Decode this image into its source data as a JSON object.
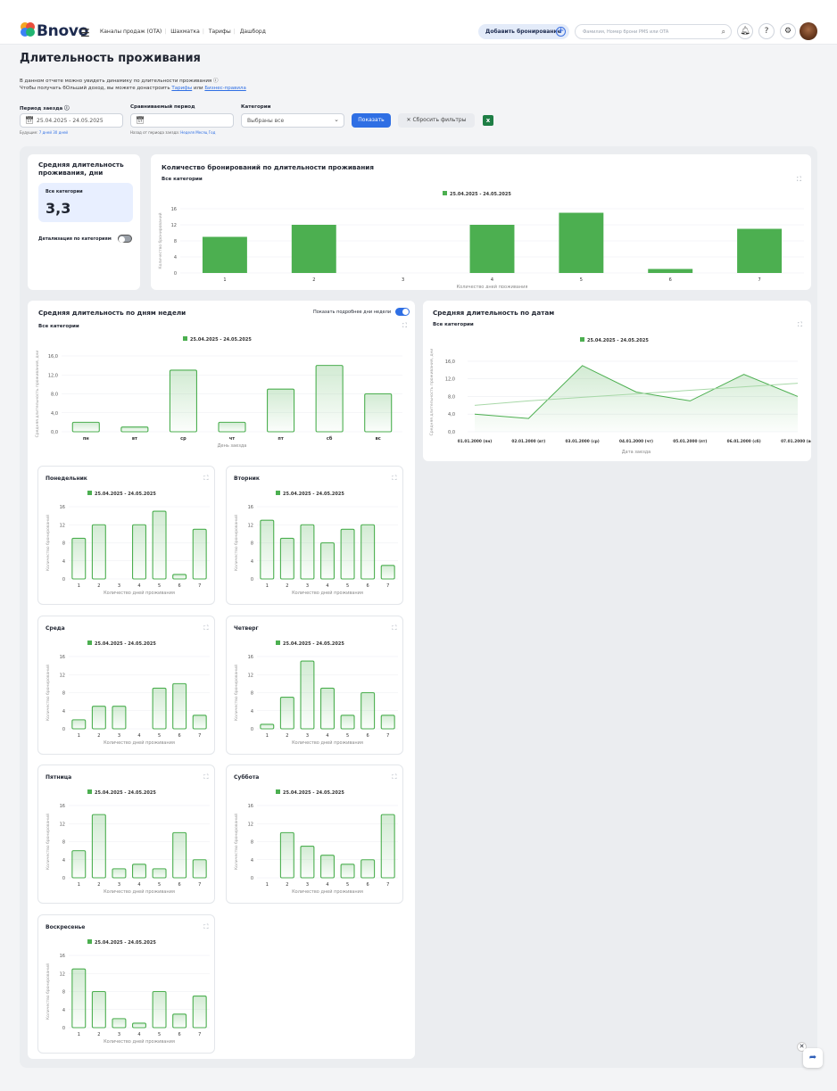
{
  "app": {
    "brand": "Bnovo",
    "nav": [
      "Каналы продаж (OTA)",
      "Шахматка",
      "Тарифы",
      "Дашборд"
    ],
    "add_booking": "Добавить бронирование",
    "search_placeholder": "Фамилия, Номер брони PMS или OTA"
  },
  "page": {
    "title": "Длительность проживания",
    "desc_line1": "В данном отчете можно увидеть динамику по длительности проживания",
    "desc_line2_prefix": "Чтобы получать бОльший доход, вы можете донастроить",
    "desc_link1": "Тарифы",
    "desc_or": "или",
    "desc_link2": "Бизнес-правила"
  },
  "filters": {
    "period_label": "Период заезда",
    "period_value": "25.04.2025 - 24.05.2025",
    "future_label": "Будущие:",
    "future_links": "7 дней 30 дней",
    "compare_label": "Сравниваемый период",
    "compare_hint": "Назад от периода заезда:",
    "compare_links": "Неделя Месяц Год",
    "category_label": "Категории",
    "category_value": "Выбраны все",
    "show_button": "Показать",
    "reset_button": "Сбросить фильтры"
  },
  "avg_card": {
    "title_line1": "Средняя длительность",
    "title_line2": "проживания, дни",
    "box_label": "Все категории",
    "value": "3,3",
    "toggle_label": "Детализация по категориям"
  },
  "weekday_card": {
    "title": "Средняя длительность по дням недели",
    "toggle_label": "Показать подробнее дни недели",
    "subtitle": "Все категории"
  },
  "dates_card": {
    "title": "Средняя длительность по датам",
    "subtitle": "Все категории"
  },
  "icons": {
    "expand": "expand-icon",
    "bell": "bell-icon",
    "help": "help-icon",
    "settings": "gear-icon"
  },
  "colors": {
    "primary": "#2f6fe4",
    "series": "#4caf50",
    "toggle_on": "#2f6fe4",
    "toggle_off": "#9aa0a8"
  },
  "chart_data": [
    {
      "id": "main",
      "type": "bar",
      "title": "Количество бронирований по длительности проживания",
      "subtitle": "Все категории",
      "legend": "25.04.2025 - 24.05.2025",
      "xlabel": "Количество дней проживания",
      "ylabel": "Количество бронирований",
      "categories": [
        "1",
        "2",
        "3",
        "4",
        "5",
        "6",
        "7"
      ],
      "values": [
        9,
        12,
        0,
        12,
        15,
        1,
        11
      ],
      "ylim": [
        0,
        16
      ],
      "yticks": [
        "0",
        "4",
        "8",
        "12",
        "16"
      ]
    },
    {
      "id": "weekday",
      "type": "bar",
      "legend": "25.04.2025 - 24.05.2025",
      "xlabel": "День заезда",
      "ylabel": "Средняя длительность проживания, дни",
      "categories": [
        "пн",
        "вт",
        "ср",
        "чт",
        "пт",
        "сб",
        "вс"
      ],
      "values": [
        2.0,
        1.0,
        13.0,
        2.0,
        9.0,
        14.0,
        8.0
      ],
      "ylim": [
        0,
        16
      ],
      "yticks": [
        "0,0",
        "4,0",
        "8,0",
        "12,0",
        "16,0"
      ]
    },
    {
      "id": "dates",
      "type": "line",
      "legend": "25.04.2025 - 24.05.2025",
      "xlabel": "Дата заезда",
      "ylabel": "Средняя длительность проживания, дни",
      "categories": [
        "01.01.2000 (пн)",
        "02.01.2000 (вт)",
        "03.01.2000 (ср)",
        "04.01.2000 (чт)",
        "05.01.2000 (пт)",
        "06.01.2000 (сб)",
        "07.01.2000 (вс)"
      ],
      "values": [
        4,
        3,
        15,
        9,
        7,
        13,
        8
      ],
      "trend": [
        6,
        7,
        7.8,
        8.6,
        9.4,
        10.2,
        11
      ],
      "ylim": [
        0,
        18
      ],
      "yticks": [
        "0,0",
        "4,0",
        "8,0",
        "12,0",
        "16,0"
      ]
    },
    {
      "id": "mon",
      "type": "bar",
      "title": "Понедельник",
      "legend": "25.04.2025 - 24.05.2025",
      "xlabel": "Количество дней проживания",
      "ylabel": "Количество бронирований",
      "categories": [
        "1",
        "2",
        "3",
        "4",
        "5",
        "6",
        "7"
      ],
      "values": [
        9,
        12,
        0,
        12,
        15,
        1,
        11
      ],
      "ylim": [
        0,
        16
      ],
      "yticks": [
        "0",
        "4",
        "8",
        "12",
        "16"
      ]
    },
    {
      "id": "tue",
      "type": "bar",
      "title": "Вторник",
      "legend": "25.04.2025 - 24.05.2025",
      "xlabel": "Количество дней проживания",
      "ylabel": "Количество бронирований",
      "categories": [
        "1",
        "2",
        "3",
        "4",
        "5",
        "6",
        "7"
      ],
      "values": [
        13,
        9,
        12,
        8,
        11,
        12,
        3
      ],
      "ylim": [
        0,
        16
      ],
      "yticks": [
        "0",
        "4",
        "8",
        "12",
        "16"
      ]
    },
    {
      "id": "wed",
      "type": "bar",
      "title": "Среда",
      "legend": "25.04.2025 - 24.05.2025",
      "xlabel": "Количество дней проживания",
      "ylabel": "Количество бронирований",
      "categories": [
        "1",
        "2",
        "3",
        "4",
        "5",
        "6",
        "7"
      ],
      "values": [
        2,
        5,
        5,
        0,
        9,
        10,
        3
      ],
      "ylim": [
        0,
        16
      ],
      "yticks": [
        "0",
        "4",
        "8",
        "12",
        "16"
      ]
    },
    {
      "id": "thu",
      "type": "bar",
      "title": "Четверг",
      "legend": "25.04.2025 - 24.05.2025",
      "xlabel": "Количество дней проживания",
      "ylabel": "Количество бронирований",
      "categories": [
        "1",
        "2",
        "3",
        "4",
        "5",
        "6",
        "7"
      ],
      "values": [
        1,
        7,
        15,
        9,
        3,
        8,
        3
      ],
      "ylim": [
        0,
        16
      ],
      "yticks": [
        "0",
        "4",
        "8",
        "12",
        "16"
      ]
    },
    {
      "id": "fri",
      "type": "bar",
      "title": "Пятница",
      "legend": "25.04.2025 - 24.05.2025",
      "xlabel": "Количество дней проживания",
      "ylabel": "Количество бронирований",
      "categories": [
        "1",
        "2",
        "3",
        "4",
        "5",
        "6",
        "7"
      ],
      "values": [
        6,
        14,
        2,
        3,
        2,
        10,
        4
      ],
      "ylim": [
        0,
        16
      ],
      "yticks": [
        "0",
        "4",
        "8",
        "12",
        "16"
      ]
    },
    {
      "id": "sat",
      "type": "bar",
      "title": "Суббота",
      "legend": "25.04.2025 - 24.05.2025",
      "xlabel": "Количество дней проживания",
      "ylabel": "Количество бронирований",
      "categories": [
        "1",
        "2",
        "3",
        "4",
        "5",
        "6",
        "7"
      ],
      "values": [
        0,
        10,
        7,
        5,
        3,
        4,
        14
      ],
      "ylim": [
        0,
        16
      ],
      "yticks": [
        "0",
        "4",
        "8",
        "12",
        "16"
      ]
    },
    {
      "id": "sun",
      "type": "bar",
      "title": "Воскресенье",
      "legend": "25.04.2025 - 24.05.2025",
      "xlabel": "Количество дней проживания",
      "ylabel": "Количество бронирований",
      "categories": [
        "1",
        "2",
        "3",
        "4",
        "5",
        "6",
        "7"
      ],
      "values": [
        13,
        8,
        2,
        1,
        8,
        3,
        7
      ],
      "ylim": [
        0,
        16
      ],
      "yticks": [
        "0",
        "4",
        "8",
        "12",
        "16"
      ]
    }
  ]
}
